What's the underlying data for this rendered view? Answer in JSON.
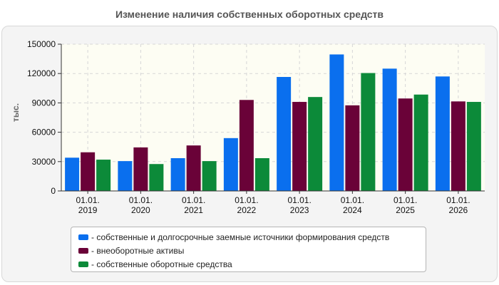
{
  "chart_data": {
    "type": "bar",
    "title": "Изменение наличия собственных оборотных средств",
    "ylabel": "тыс.",
    "ylim": [
      0,
      150000
    ],
    "yticks": [
      "0",
      "30000",
      "60000",
      "90000",
      "120000",
      "150000"
    ],
    "categories": [
      [
        "01.01.",
        "2019"
      ],
      [
        "01.01.",
        "2020"
      ],
      [
        "01.01.",
        "2021"
      ],
      [
        "01.01.",
        "2022"
      ],
      [
        "01.01.",
        "2023"
      ],
      [
        "01.01.",
        "2024"
      ],
      [
        "01.01.",
        "2025"
      ],
      [
        "01.01.",
        "2026"
      ]
    ],
    "grid": true,
    "legend_position": "bottom",
    "series": [
      {
        "name": "- собственные и долгосрочные заемные источники формирования средств",
        "color": "#0a6fee",
        "values": [
          34000,
          30500,
          33500,
          54000,
          116500,
          139500,
          125000,
          117000
        ]
      },
      {
        "name": "- внеоборотные активы",
        "color": "#6a0238",
        "values": [
          39500,
          44500,
          46500,
          93000,
          91000,
          87500,
          94500,
          91500
        ]
      },
      {
        "name": "- собственные оборотные средства",
        "color": "#0c8a39",
        "values": [
          32000,
          27500,
          30500,
          33500,
          96000,
          120500,
          98500,
          91000
        ]
      }
    ]
  }
}
